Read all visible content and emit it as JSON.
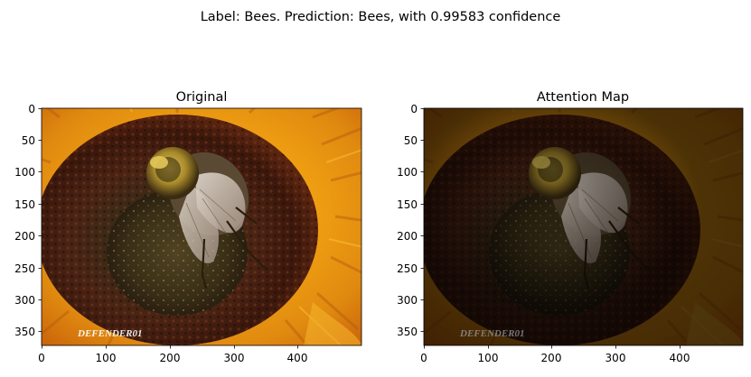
{
  "figure": {
    "suptitle": "Label: Bees. Prediction: Bees, with 0.99583 confidence"
  },
  "panels": [
    {
      "title": "Original",
      "xticks": [
        "0",
        "100",
        "200",
        "300",
        "400"
      ],
      "yticks": [
        "0",
        "50",
        "100",
        "150",
        "200",
        "250",
        "300",
        "350"
      ],
      "image": {
        "subject": "bumblebee on sunflower",
        "watermark": "DEFENDER01",
        "dimmed": false
      }
    },
    {
      "title": "Attention Map",
      "xticks": [
        "0",
        "100",
        "200",
        "300",
        "400"
      ],
      "yticks": [
        "0",
        "50",
        "100",
        "150",
        "200",
        "250",
        "300",
        "350"
      ],
      "image": {
        "subject": "bumblebee on sunflower with attention overlay",
        "watermark": "DEFENDER01",
        "dimmed": true
      }
    }
  ],
  "colors": {
    "petal": "#e8a317",
    "petal_dark": "#b35a0c",
    "disc": "#3b1a0f",
    "disc_center": "#4a3a1c",
    "bee_fur": "#d8c08a",
    "bee_dark": "#1c1408"
  }
}
